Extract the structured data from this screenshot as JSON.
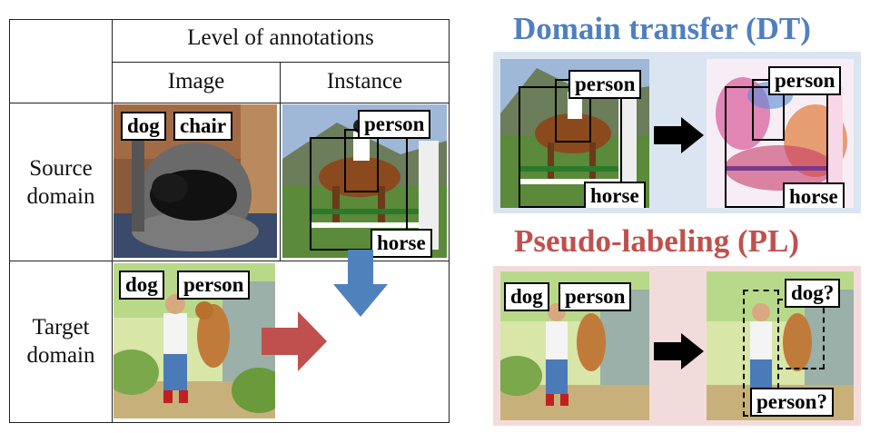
{
  "table": {
    "header_top": "Level of annotations",
    "col_image": "Image",
    "col_instance": "Instance",
    "row_source": [
      "Source",
      "domain"
    ],
    "row_target": [
      "Target",
      "domain"
    ]
  },
  "labels": {
    "dog": "dog",
    "chair": "chair",
    "person": "person",
    "horse": "horse",
    "dog_q": "dog?",
    "person_q": "person?"
  },
  "dt": {
    "title": "Domain transfer (DT)",
    "color": "#4f7fbf",
    "panel_bg": "#dbe5f1"
  },
  "pl": {
    "title": "Pseudo-labeling (PL)",
    "color": "#c0504d",
    "panel_bg": "#f2dcdb"
  },
  "arrows": {
    "red": "#c0504d",
    "blue": "#4f81bd",
    "black": "#000000"
  },
  "icons": [
    "dog-photo",
    "horse-rider-photo",
    "boy-dog-painting",
    "right-arrow-icon",
    "down-arrow-icon"
  ]
}
